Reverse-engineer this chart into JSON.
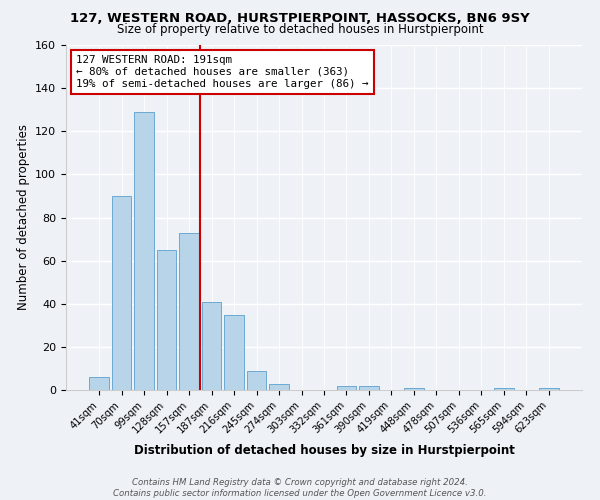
{
  "title": "127, WESTERN ROAD, HURSTPIERPOINT, HASSOCKS, BN6 9SY",
  "subtitle": "Size of property relative to detached houses in Hurstpierpoint",
  "xlabel": "Distribution of detached houses by size in Hurstpierpoint",
  "ylabel": "Number of detached properties",
  "bin_labels": [
    "41sqm",
    "70sqm",
    "99sqm",
    "128sqm",
    "157sqm",
    "187sqm",
    "216sqm",
    "245sqm",
    "274sqm",
    "303sqm",
    "332sqm",
    "361sqm",
    "390sqm",
    "419sqm",
    "448sqm",
    "478sqm",
    "507sqm",
    "536sqm",
    "565sqm",
    "594sqm",
    "623sqm"
  ],
  "bar_values": [
    6,
    90,
    129,
    65,
    73,
    41,
    35,
    9,
    3,
    0,
    0,
    2,
    2,
    0,
    1,
    0,
    0,
    0,
    1,
    0,
    1
  ],
  "bar_color": "#b8d4e8",
  "bar_edge_color": "#6aaad4",
  "annotation_title": "127 WESTERN ROAD: 191sqm",
  "annotation_line1": "← 80% of detached houses are smaller (363)",
  "annotation_line2": "19% of semi-detached houses are larger (86) →",
  "annotation_box_color": "#ffffff",
  "annotation_box_edge": "#cc0000",
  "ref_line_color": "#cc0000",
  "ylim": [
    0,
    160
  ],
  "yticks": [
    0,
    20,
    40,
    60,
    80,
    100,
    120,
    140,
    160
  ],
  "footer1": "Contains HM Land Registry data © Crown copyright and database right 2024.",
  "footer2": "Contains public sector information licensed under the Open Government Licence v3.0.",
  "background_color": "#eef2f7",
  "plot_background": "#eef2f7",
  "grid_color": "#ffffff"
}
